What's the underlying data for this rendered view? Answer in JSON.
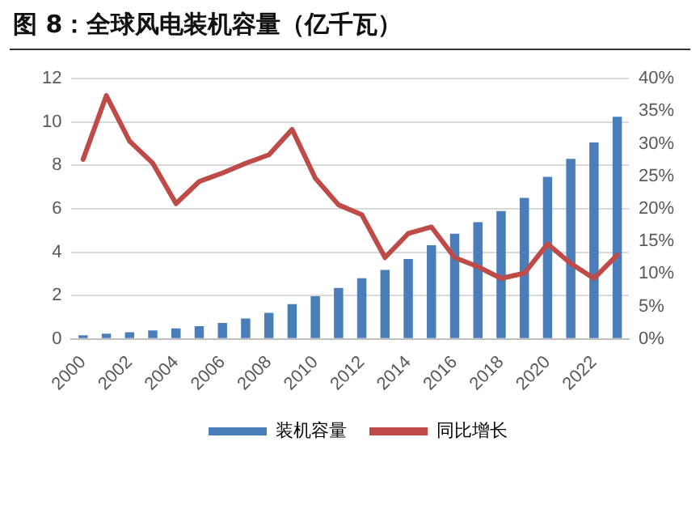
{
  "chart_data": {
    "type": "bar",
    "title": "图 8：全球风电装机容量（亿千瓦）",
    "categories": [
      "2000",
      null,
      "2002",
      null,
      "2004",
      null,
      "2006",
      null,
      "2008",
      null,
      "2010",
      null,
      "2012",
      null,
      "2014",
      null,
      "2016",
      null,
      "2018",
      null,
      "2020",
      null,
      "2022",
      null
    ],
    "series": [
      {
        "name": "装机容量",
        "color": "#4a7ebb",
        "values": [
          0.17,
          0.24,
          0.31,
          0.39,
          0.48,
          0.59,
          0.74,
          0.94,
          1.2,
          1.6,
          1.97,
          2.35,
          2.8,
          3.18,
          3.68,
          4.32,
          4.85,
          5.38,
          5.9,
          6.5,
          7.47,
          8.3,
          9.06,
          10.24
        ]
      },
      {
        "name": "同比增长",
        "type": "line",
        "axis": "y2",
        "color": "#be4b48",
        "values": [
          27.6,
          37.4,
          30.4,
          27,
          20.8,
          24.2,
          25.5,
          27,
          28.3,
          32.2,
          24.7,
          20.6,
          19.1,
          12.5,
          16.2,
          17.2,
          12.5,
          11.1,
          9.3,
          10.1,
          14.6,
          11.6,
          9.3,
          12.9
        ]
      }
    ],
    "ylim": [
      0,
      12
    ],
    "yticks": [
      0,
      2,
      4,
      6,
      8,
      10,
      12
    ],
    "y2lim": [
      0,
      40
    ],
    "y2ticks": [
      {
        "value": 0,
        "label": "0%"
      },
      {
        "value": 5,
        "label": "5%"
      },
      {
        "value": 10,
        "label": "10%"
      },
      {
        "value": 15,
        "label": "15%"
      },
      {
        "value": 20,
        "label": "20%"
      },
      {
        "value": 25,
        "label": "25%"
      },
      {
        "value": 30,
        "label": "30%"
      },
      {
        "value": 35,
        "label": "35%"
      },
      {
        "value": 40,
        "label": "40%"
      }
    ],
    "grid": "y",
    "legend": "bottom",
    "marker": "none"
  }
}
